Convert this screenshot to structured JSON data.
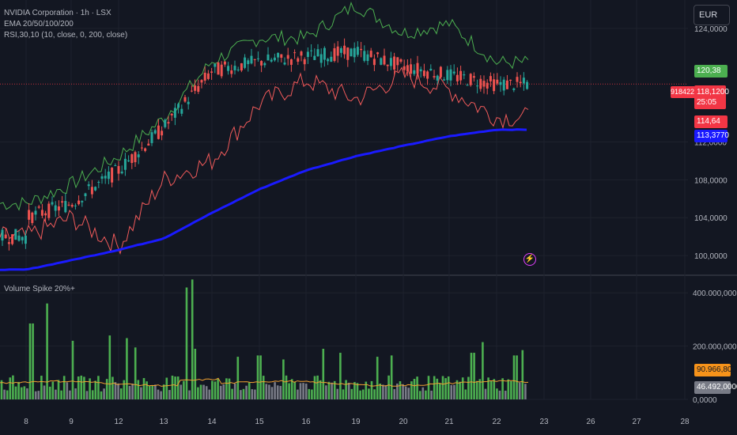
{
  "legend": {
    "symbol": "NVIDIA Corporation · 1h · LSX",
    "ema": "EMA 20/50/100/200",
    "rsi": "RSI,30,10 (10, close, 0, 200, close)",
    "volume": "Volume Spike 20%+"
  },
  "currency": "EUR",
  "price_axis": {
    "ticks": [
      "124,0000",
      "112,0000",
      "108,0000",
      "104,0000",
      "100,0000"
    ],
    "labels": {
      "green_value": "120,38",
      "marker": "918422",
      "last_price": "118,1200",
      "countdown": "25:05",
      "red_value": "114,64",
      "blue_value": "113,3770"
    }
  },
  "volume_axis": {
    "ticks": [
      "400.000,0000",
      "200.000,0000",
      "0,0000"
    ],
    "labels": {
      "orange_value": "90.966,8000",
      "gray_value": "46.492,0000"
    }
  },
  "time_axis": [
    "8",
    "9",
    "12",
    "13",
    "14",
    "15",
    "16",
    "19",
    "20",
    "21",
    "22",
    "23",
    "26",
    "27",
    "28"
  ],
  "colors": {
    "up": "#26a69a",
    "down": "#ef5350",
    "green_line": "#4caf50",
    "red_line": "#f05a5a",
    "ema200": "#1a1aff",
    "vol_up": "#4caf50",
    "vol_neutral": "#787b86",
    "vol_ma": "#f0a030",
    "tag_green": "#4caf50",
    "tag_red": "#f23645",
    "tag_blue": "#1a1aff",
    "tag_orange": "#f7931a",
    "tag_gray": "#787b86"
  },
  "chart_data": {
    "type": "line",
    "title": "NVIDIA Corporation · 1h · LSX",
    "ylim": [
      98,
      127
    ],
    "x": [
      "8",
      "9",
      "12",
      "13",
      "14",
      "15",
      "16",
      "19",
      "20",
      "21",
      "22"
    ],
    "series": [
      {
        "name": "EMA 20/50/100/200",
        "color": "#1a1aff",
        "values": [
          98.5,
          99.5,
          100.6,
          101.8,
          104.5,
          107.0,
          109.0,
          110.5,
          111.6,
          112.6,
          113.3
        ]
      },
      {
        "name": "RSI,30,10 (10, close, 0, 200, close)",
        "values": [
          102.0,
          104.0,
          101.0,
          108.0,
          110.0,
          116.0,
          118.5,
          116.5,
          119.0,
          117.5,
          114.6
        ]
      },
      {
        "name": "upper",
        "color": "#4caf50",
        "values": [
          105.5,
          107.5,
          110.5,
          114.5,
          120.5,
          123.0,
          123.0,
          126.5,
          123.5,
          124.5,
          120.4
        ]
      }
    ],
    "last_price": 118.12,
    "volume": {
      "name": "Volume Spike 20%+",
      "ylim": [
        0,
        460000
      ],
      "last_ma": 90966.8,
      "last_volume": 46492
    }
  }
}
